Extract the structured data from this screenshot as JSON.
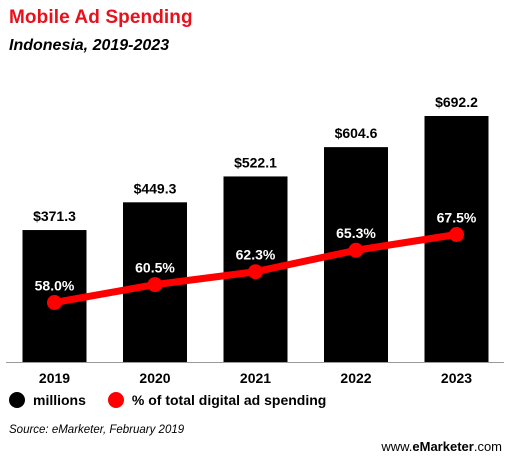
{
  "chart_data": {
    "type": "bar",
    "title": "Mobile Ad Spending",
    "subtitle": "Indonesia, 2019-2023",
    "categories": [
      "2019",
      "2020",
      "2021",
      "2022",
      "2023"
    ],
    "series": [
      {
        "name": "millions",
        "type": "bar",
        "values": [
          371.3,
          449.3,
          522.1,
          604.6,
          692.2
        ],
        "labels": [
          "$371.3",
          "$449.3",
          "$522.1",
          "$604.6",
          "$692.2"
        ],
        "color": "#000000"
      },
      {
        "name": "% of total digital ad spending",
        "type": "line",
        "values": [
          58.0,
          60.5,
          62.3,
          65.3,
          67.5
        ],
        "labels": [
          "58.0%",
          "60.5%",
          "62.3%",
          "65.3%",
          "67.5%"
        ],
        "color": "#ff0000"
      }
    ],
    "legend": {
      "position": "bottom-left",
      "items": [
        "millions",
        "% of total digital ad spending"
      ]
    },
    "grid": false
  },
  "source": "Source: eMarketer, February 2019",
  "logo": {
    "prefix": "www.",
    "brand": "eMarketer",
    "suffix": ".com"
  }
}
